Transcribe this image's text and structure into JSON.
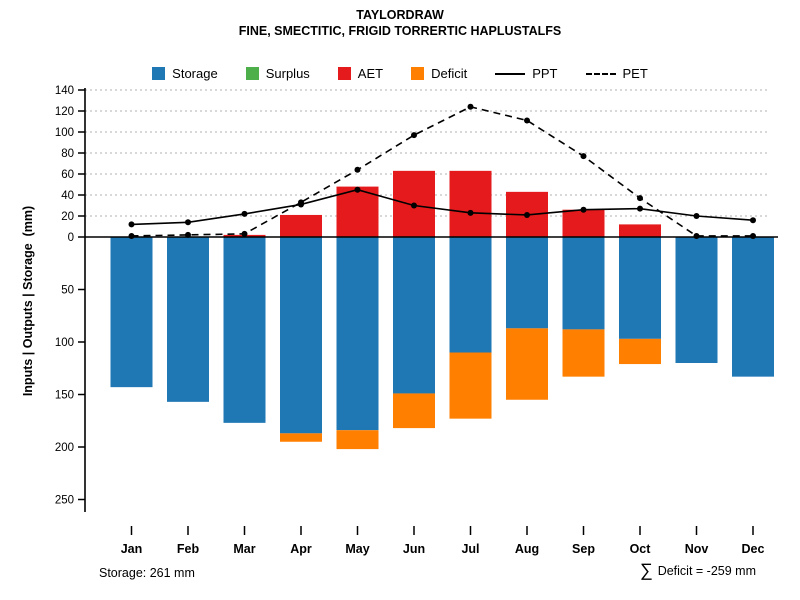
{
  "footer": {
    "storage_note": "Storage: 261 mm",
    "deficit_sigma": "∑",
    "deficit_text": "Deficit = -259 mm"
  },
  "colors": {
    "storage": "#1f77b4",
    "surplus": "#4daf4a",
    "aet": "#e41a1c",
    "deficit": "#ff7f00",
    "line": "#000000",
    "grid": "#b0b0b0"
  },
  "chart_data": {
    "type": "bar",
    "title": "TAYLORDRAW",
    "subtitle": "FINE, SMECTITIC, FRIGID TORRERTIC HAPLUSTALFS",
    "ylabel": "Inputs | Outputs | Storage  (mm)",
    "xlabel": "",
    "categories": [
      "Jan",
      "Feb",
      "Mar",
      "Apr",
      "May",
      "Jun",
      "Jul",
      "Aug",
      "Sep",
      "Oct",
      "Nov",
      "Dec"
    ],
    "axis": {
      "y_up_ticks": [
        0,
        20,
        40,
        60,
        80,
        100,
        120,
        140
      ],
      "y_down_ticks": [
        50,
        100,
        150,
        200,
        250
      ],
      "y_up_max": 140,
      "y_down_max": 265,
      "grid": "dashed-upper-only",
      "units": "mm"
    },
    "legend_position": "top",
    "legend": [
      {
        "label": "Storage",
        "swatch": "square",
        "color_key": "storage"
      },
      {
        "label": "Surplus",
        "swatch": "square",
        "color_key": "surplus"
      },
      {
        "label": "AET",
        "swatch": "square",
        "color_key": "aet"
      },
      {
        "label": "Deficit",
        "swatch": "square",
        "color_key": "deficit"
      },
      {
        "label": "PPT",
        "swatch": "line-solid"
      },
      {
        "label": "PET",
        "swatch": "line-dashed"
      }
    ],
    "series": [
      {
        "name": "Storage",
        "render": "bar",
        "direction": "down",
        "color_key": "storage",
        "values": [
          143,
          157,
          177,
          187,
          184,
          149,
          110,
          87,
          88,
          97,
          120,
          133
        ]
      },
      {
        "name": "Surplus",
        "render": "bar",
        "direction": "up",
        "color_key": "surplus",
        "values": [
          0,
          0,
          0,
          0,
          0,
          0,
          0,
          0,
          0,
          0,
          0,
          0
        ]
      },
      {
        "name": "AET",
        "render": "bar",
        "direction": "up",
        "color_key": "aet",
        "values": [
          0,
          0,
          2,
          21,
          48,
          63,
          63,
          43,
          26,
          12,
          0,
          0
        ]
      },
      {
        "name": "Deficit",
        "render": "bar",
        "direction": "down-stacked-below-storage",
        "color_key": "deficit",
        "values": [
          0,
          0,
          0,
          8,
          18,
          33,
          63,
          68,
          45,
          24,
          0,
          0
        ]
      },
      {
        "name": "PPT",
        "render": "line",
        "style": "solid",
        "marker": "dot",
        "values": [
          12,
          14,
          22,
          31,
          45,
          30,
          23,
          21,
          26,
          27,
          20,
          16
        ]
      },
      {
        "name": "PET",
        "render": "line",
        "style": "dashed",
        "marker": "dot",
        "values": [
          1,
          2,
          3,
          33,
          64,
          97,
          124,
          111,
          77,
          37,
          1,
          1
        ]
      }
    ]
  }
}
